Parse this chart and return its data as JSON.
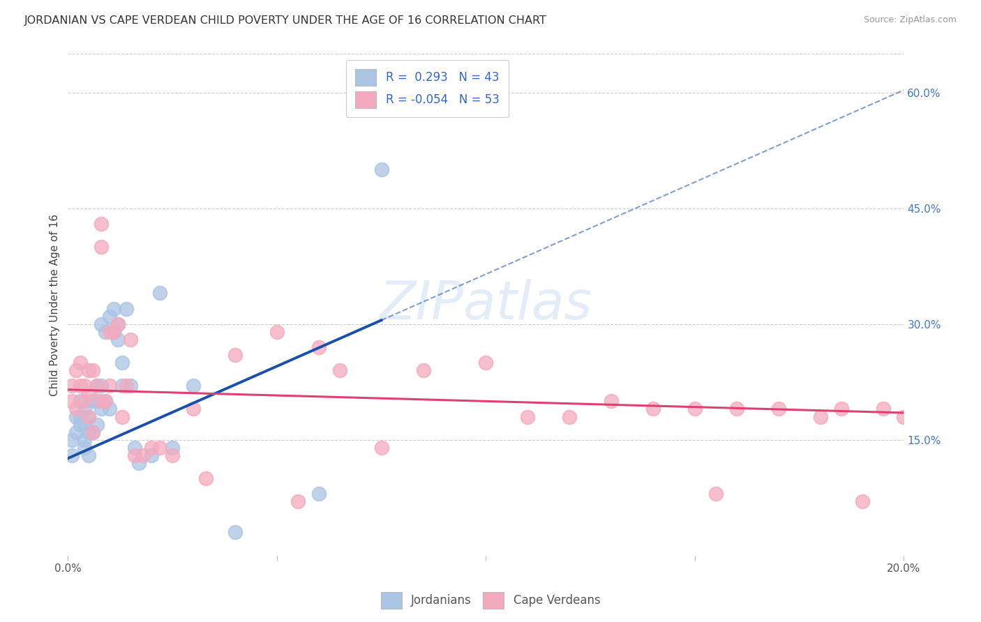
{
  "title": "JORDANIAN VS CAPE VERDEAN CHILD POVERTY UNDER THE AGE OF 16 CORRELATION CHART",
  "source": "Source: ZipAtlas.com",
  "ylabel": "Child Poverty Under the Age of 16",
  "xlim": [
    0.0,
    0.2
  ],
  "ylim": [
    0.0,
    0.65
  ],
  "xticks": [
    0.0,
    0.05,
    0.1,
    0.15,
    0.2
  ],
  "xtick_labels": [
    "0.0%",
    "",
    "",
    "",
    "20.0%"
  ],
  "ytick_right": [
    0.15,
    0.3,
    0.45,
    0.6
  ],
  "ytick_right_labels": [
    "15.0%",
    "30.0%",
    "45.0%",
    "60.0%"
  ],
  "background_color": "#ffffff",
  "grid_color": "#cccccc",
  "jordanians_color": "#aac4e4",
  "cape_verdeans_color": "#f4aabe",
  "jordanians_line_color": "#1a4faa",
  "cape_verdeans_line_color": "#e04070",
  "r_jordan": 0.293,
  "n_jordan": 43,
  "r_cape": -0.054,
  "n_cape": 53,
  "watermark": "ZIPatlas",
  "jordan_line_x0": 0.0,
  "jordan_line_y0": 0.126,
  "jordan_line_x1": 0.075,
  "jordan_line_y1": 0.305,
  "cape_line_x0": 0.0,
  "cape_line_y0": 0.215,
  "cape_line_x1": 0.2,
  "cape_line_y1": 0.185,
  "jordanians_x": [
    0.001,
    0.001,
    0.002,
    0.002,
    0.003,
    0.003,
    0.003,
    0.004,
    0.004,
    0.004,
    0.004,
    0.005,
    0.005,
    0.005,
    0.006,
    0.006,
    0.007,
    0.007,
    0.007,
    0.008,
    0.008,
    0.008,
    0.009,
    0.009,
    0.01,
    0.01,
    0.011,
    0.011,
    0.012,
    0.012,
    0.013,
    0.013,
    0.014,
    0.015,
    0.016,
    0.017,
    0.02,
    0.022,
    0.025,
    0.03,
    0.04,
    0.06,
    0.075
  ],
  "jordanians_y": [
    0.13,
    0.15,
    0.16,
    0.18,
    0.18,
    0.2,
    0.17,
    0.15,
    0.14,
    0.17,
    0.19,
    0.16,
    0.18,
    0.13,
    0.2,
    0.16,
    0.2,
    0.17,
    0.22,
    0.19,
    0.22,
    0.3,
    0.2,
    0.29,
    0.19,
    0.31,
    0.29,
    0.32,
    0.28,
    0.3,
    0.22,
    0.25,
    0.32,
    0.22,
    0.14,
    0.12,
    0.13,
    0.34,
    0.14,
    0.22,
    0.03,
    0.08,
    0.5
  ],
  "cape_verdeans_x": [
    0.001,
    0.001,
    0.002,
    0.002,
    0.003,
    0.003,
    0.004,
    0.004,
    0.005,
    0.005,
    0.005,
    0.006,
    0.006,
    0.007,
    0.008,
    0.008,
    0.008,
    0.009,
    0.01,
    0.01,
    0.011,
    0.012,
    0.013,
    0.014,
    0.015,
    0.016,
    0.018,
    0.02,
    0.022,
    0.025,
    0.03,
    0.033,
    0.04,
    0.05,
    0.055,
    0.06,
    0.065,
    0.075,
    0.085,
    0.1,
    0.11,
    0.12,
    0.13,
    0.14,
    0.15,
    0.155,
    0.16,
    0.17,
    0.18,
    0.185,
    0.19,
    0.195,
    0.2
  ],
  "cape_verdeans_y": [
    0.2,
    0.22,
    0.19,
    0.24,
    0.22,
    0.25,
    0.22,
    0.2,
    0.24,
    0.18,
    0.21,
    0.16,
    0.24,
    0.22,
    0.43,
    0.4,
    0.2,
    0.2,
    0.29,
    0.22,
    0.29,
    0.3,
    0.18,
    0.22,
    0.28,
    0.13,
    0.13,
    0.14,
    0.14,
    0.13,
    0.19,
    0.1,
    0.26,
    0.29,
    0.07,
    0.27,
    0.24,
    0.14,
    0.24,
    0.25,
    0.18,
    0.18,
    0.2,
    0.19,
    0.19,
    0.08,
    0.19,
    0.19,
    0.18,
    0.19,
    0.07,
    0.19,
    0.18
  ]
}
